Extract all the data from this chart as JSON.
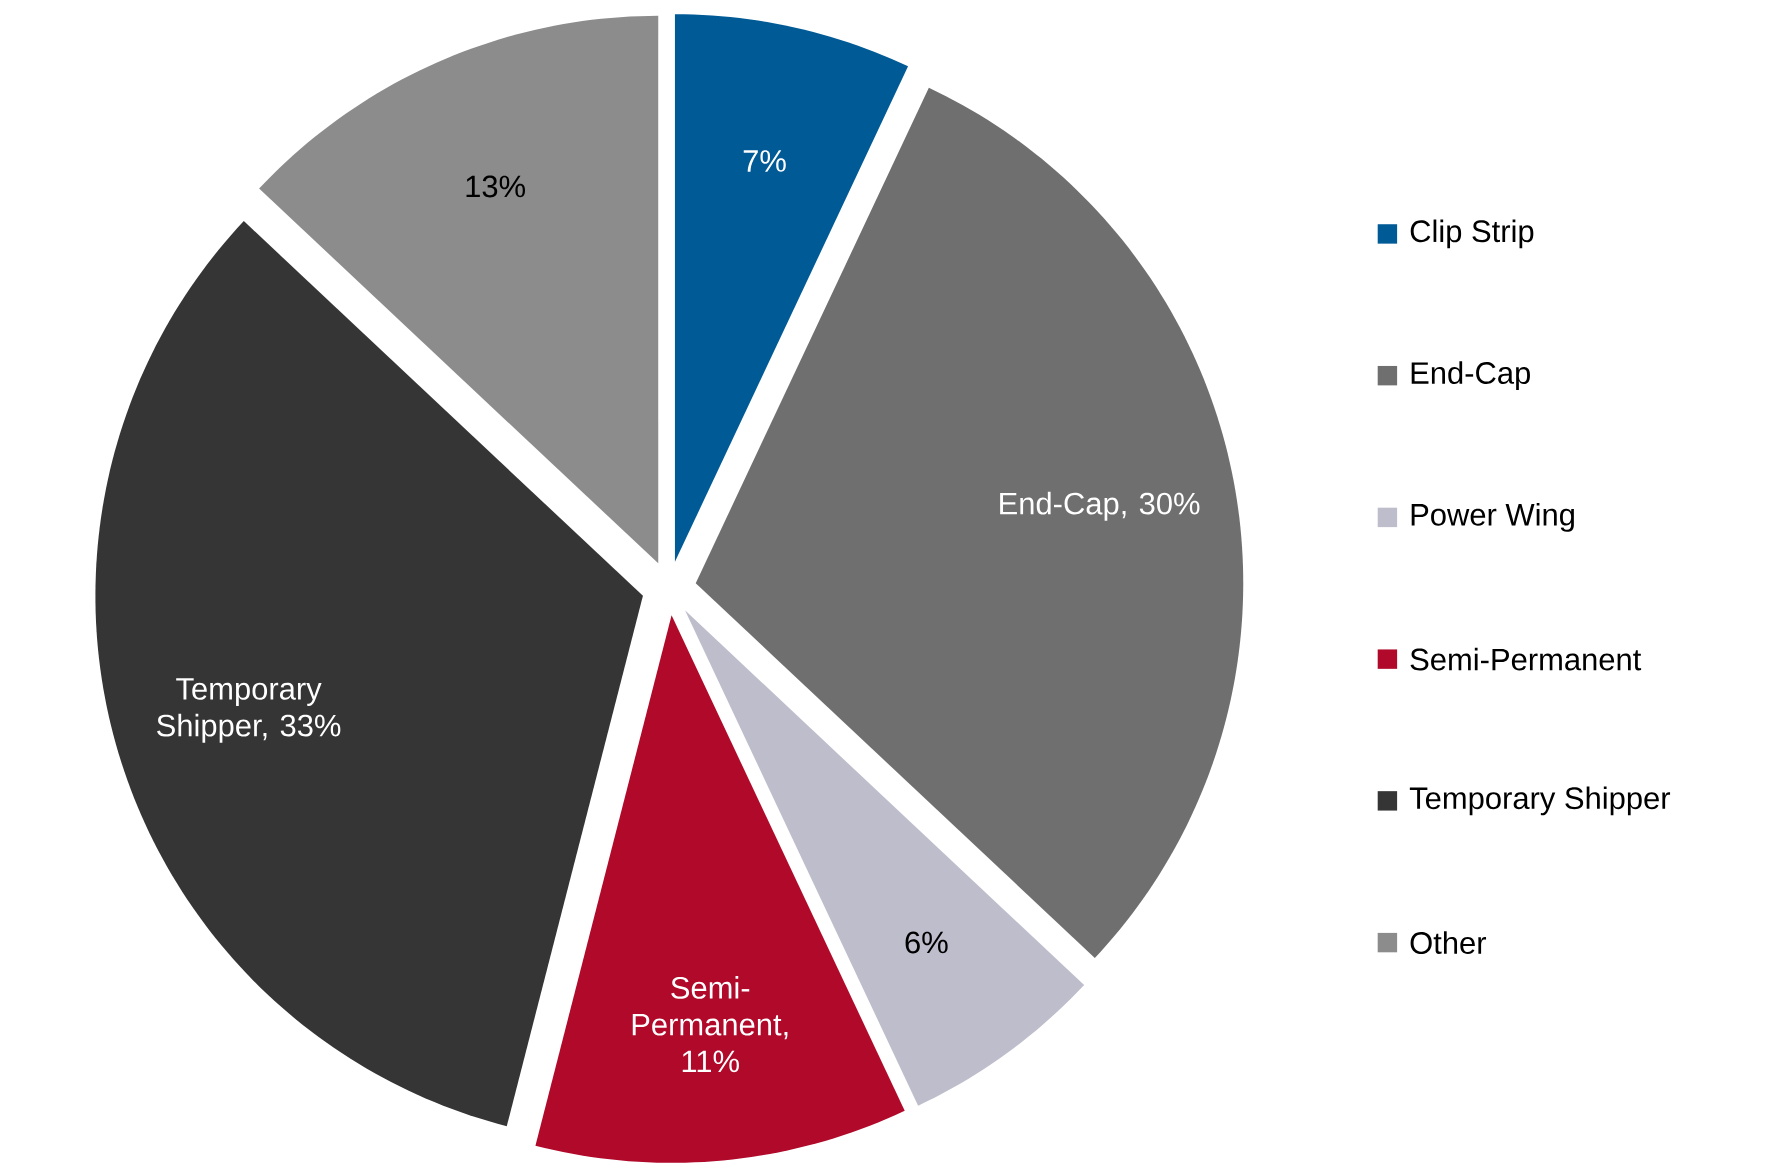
{
  "chart_data": {
    "type": "pie",
    "categories": [
      "Clip Strip",
      "End-Cap",
      "Power Wing",
      "Semi-Permanent",
      "Temporary Shipper",
      "Other"
    ],
    "values": [
      7,
      30,
      6,
      11,
      33,
      13
    ],
    "colors": [
      "#005a96",
      "#6f6f6f",
      "#bdbdcc",
      "#b0092a",
      "#353535",
      "#8c8c8c"
    ],
    "value_labels": [
      "7%",
      "End-Cap, 30%",
      "6%",
      "Semi-Permanent, 11%",
      "Temporary Shipper, 33%",
      "13%"
    ],
    "legend": "right"
  }
}
